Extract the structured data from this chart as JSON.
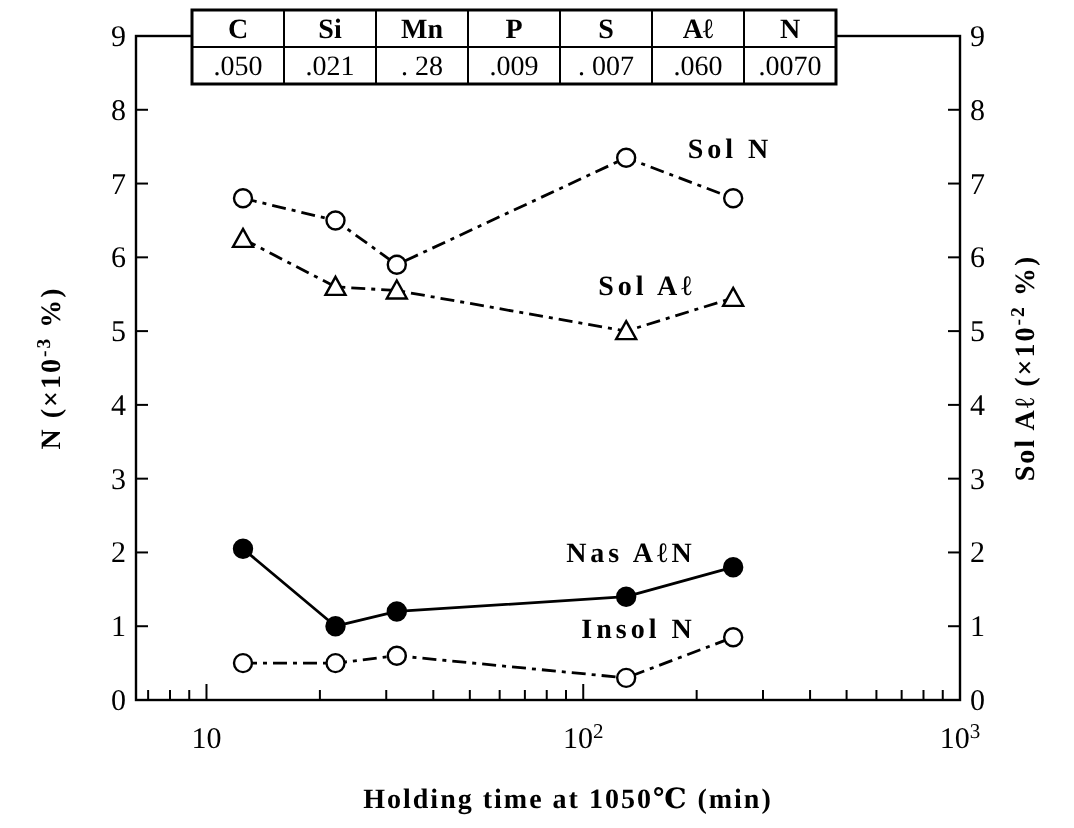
{
  "chart_data": {
    "type": "line",
    "xlabel": "Holding time at 1050℃ (min)",
    "ylabel": "N (×10$^{-3}$ %)",
    "y2label": "Sol Aℓ (×10$^{-2}$ %)",
    "log": "x",
    "xlim": [
      6.5,
      1000
    ],
    "xticks": [
      {
        "value": 7,
        "label": null
      },
      {
        "value": 8,
        "label": null
      },
      {
        "value": 9,
        "label": null
      },
      {
        "value": 10,
        "label": "10"
      },
      {
        "value": 20,
        "label": null
      },
      {
        "value": 30,
        "label": null
      },
      {
        "value": 40,
        "label": null
      },
      {
        "value": 50,
        "label": null
      },
      {
        "value": 60,
        "label": null
      },
      {
        "value": 70,
        "label": null
      },
      {
        "value": 80,
        "label": null
      },
      {
        "value": 90,
        "label": null
      },
      {
        "value": 100,
        "label": "10$^{2}$"
      },
      {
        "value": 200,
        "label": null
      },
      {
        "value": 300,
        "label": null
      },
      {
        "value": 400,
        "label": null
      },
      {
        "value": 500,
        "label": null
      },
      {
        "value": 600,
        "label": null
      },
      {
        "value": 700,
        "label": null
      },
      {
        "value": 800,
        "label": null
      },
      {
        "value": 900,
        "label": null
      },
      {
        "value": 1000,
        "label": "10$^{3}$"
      }
    ],
    "ylim": [
      0,
      9
    ],
    "yticks": [
      0,
      1,
      2,
      3,
      4,
      5,
      6,
      7,
      8,
      9
    ],
    "y2lim": [
      0,
      9
    ],
    "y2ticks": [
      0,
      1,
      2,
      3,
      4,
      5,
      6,
      7,
      8,
      9
    ],
    "x": [
      12.5,
      22,
      32,
      130,
      250
    ],
    "series": [
      {
        "name": "Sol N",
        "color": "#000000",
        "marker": "circle",
        "line_style": "dashed",
        "values": [
          6.8,
          6.5,
          5.9,
          7.35,
          6.8
        ]
      },
      {
        "name": "Sol Aℓ",
        "color": "#000000",
        "marker": "triangle",
        "line_style": "dashed",
        "axis": "y2",
        "values": [
          6.25,
          5.6,
          5.55,
          5.0,
          5.45
        ]
      },
      {
        "name": "Nas AℓN",
        "color": "#000000",
        "marker": "circle",
        "line_style": "solid",
        "values": [
          2.05,
          1.0,
          1.2,
          1.4,
          1.8
        ]
      },
      {
        "name": "Insol N",
        "color": "#000000",
        "marker": "circle",
        "line_style": "dashed",
        "values": [
          0.5,
          0.5,
          0.6,
          0.3,
          0.85
        ]
      }
    ],
    "annotations": [
      "C",
      "Si",
      "Mn",
      "P",
      "S",
      "Aℓ",
      "N",
      ".050",
      ".021",
      ". 28",
      ".009",
      ". 007",
      ".060",
      ".0070"
    ],
    "grid": false,
    "legend": false
  }
}
